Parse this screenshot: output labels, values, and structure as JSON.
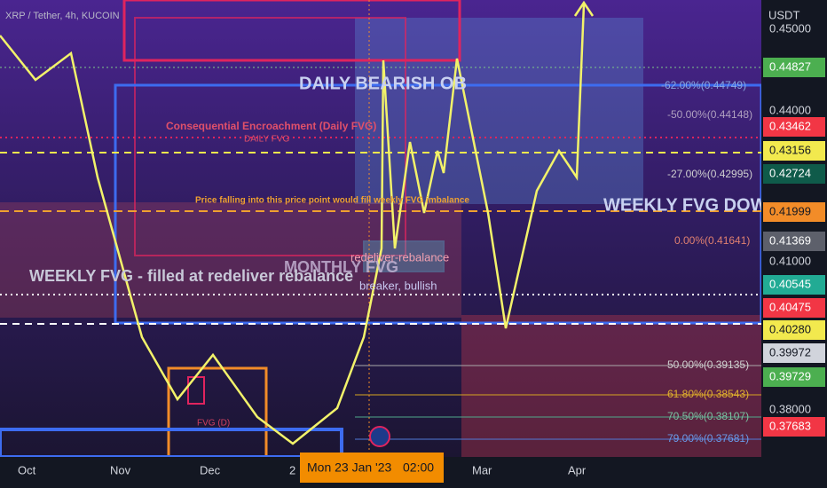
{
  "header": {
    "symbol": "XRP / Tether, 4h, KUCOIN",
    "currency": "USDT"
  },
  "price_axis": [
    "0.45000",
    "0.44827",
    "0.44000",
    "0.43462",
    "0.43156",
    "0.42724",
    "0.41999",
    "0.41369",
    "0.41000",
    "0.40545",
    "0.40475",
    "0.40280",
    "0.39972",
    "0.39729",
    "0.38000",
    "0.37683"
  ],
  "fib_levels": [
    "-62.00%(0.44749)",
    "-50.00%(0.44148)",
    "-27.00%(0.42995)",
    "0.00%(0.41641)",
    "50.00%(0.39135)",
    "61.80%(0.38543)",
    "70.50%(0.38107)",
    "79.00%(0.37681)"
  ],
  "time_axis": [
    "Oct",
    "Nov",
    "Dec",
    "2",
    "Mar",
    "Apr"
  ],
  "crosshair_time": {
    "date": "Mon 23 Jan '23",
    "time": "02:00"
  },
  "annotations": {
    "daily_bearish_ob": "DAILY BEARISH OB",
    "consequential": "Consequential Encroachment (Daily FVG)",
    "daily_fvg": "DAILY FVG",
    "price_falling": "Price falling into this price point would fill weekly FVG imbalance",
    "weekly_fvg_down": "WEEKLY FVG DOW",
    "monthly_fvg": "MONTHLY FVG",
    "redeliver": "redeliver-rebalance",
    "breaker": "breaker, bullish",
    "weekly_fvg_filled": "WEEKLY FVG - filled at redeliver rebalance",
    "fvg_d": "FVG (D)"
  }
}
